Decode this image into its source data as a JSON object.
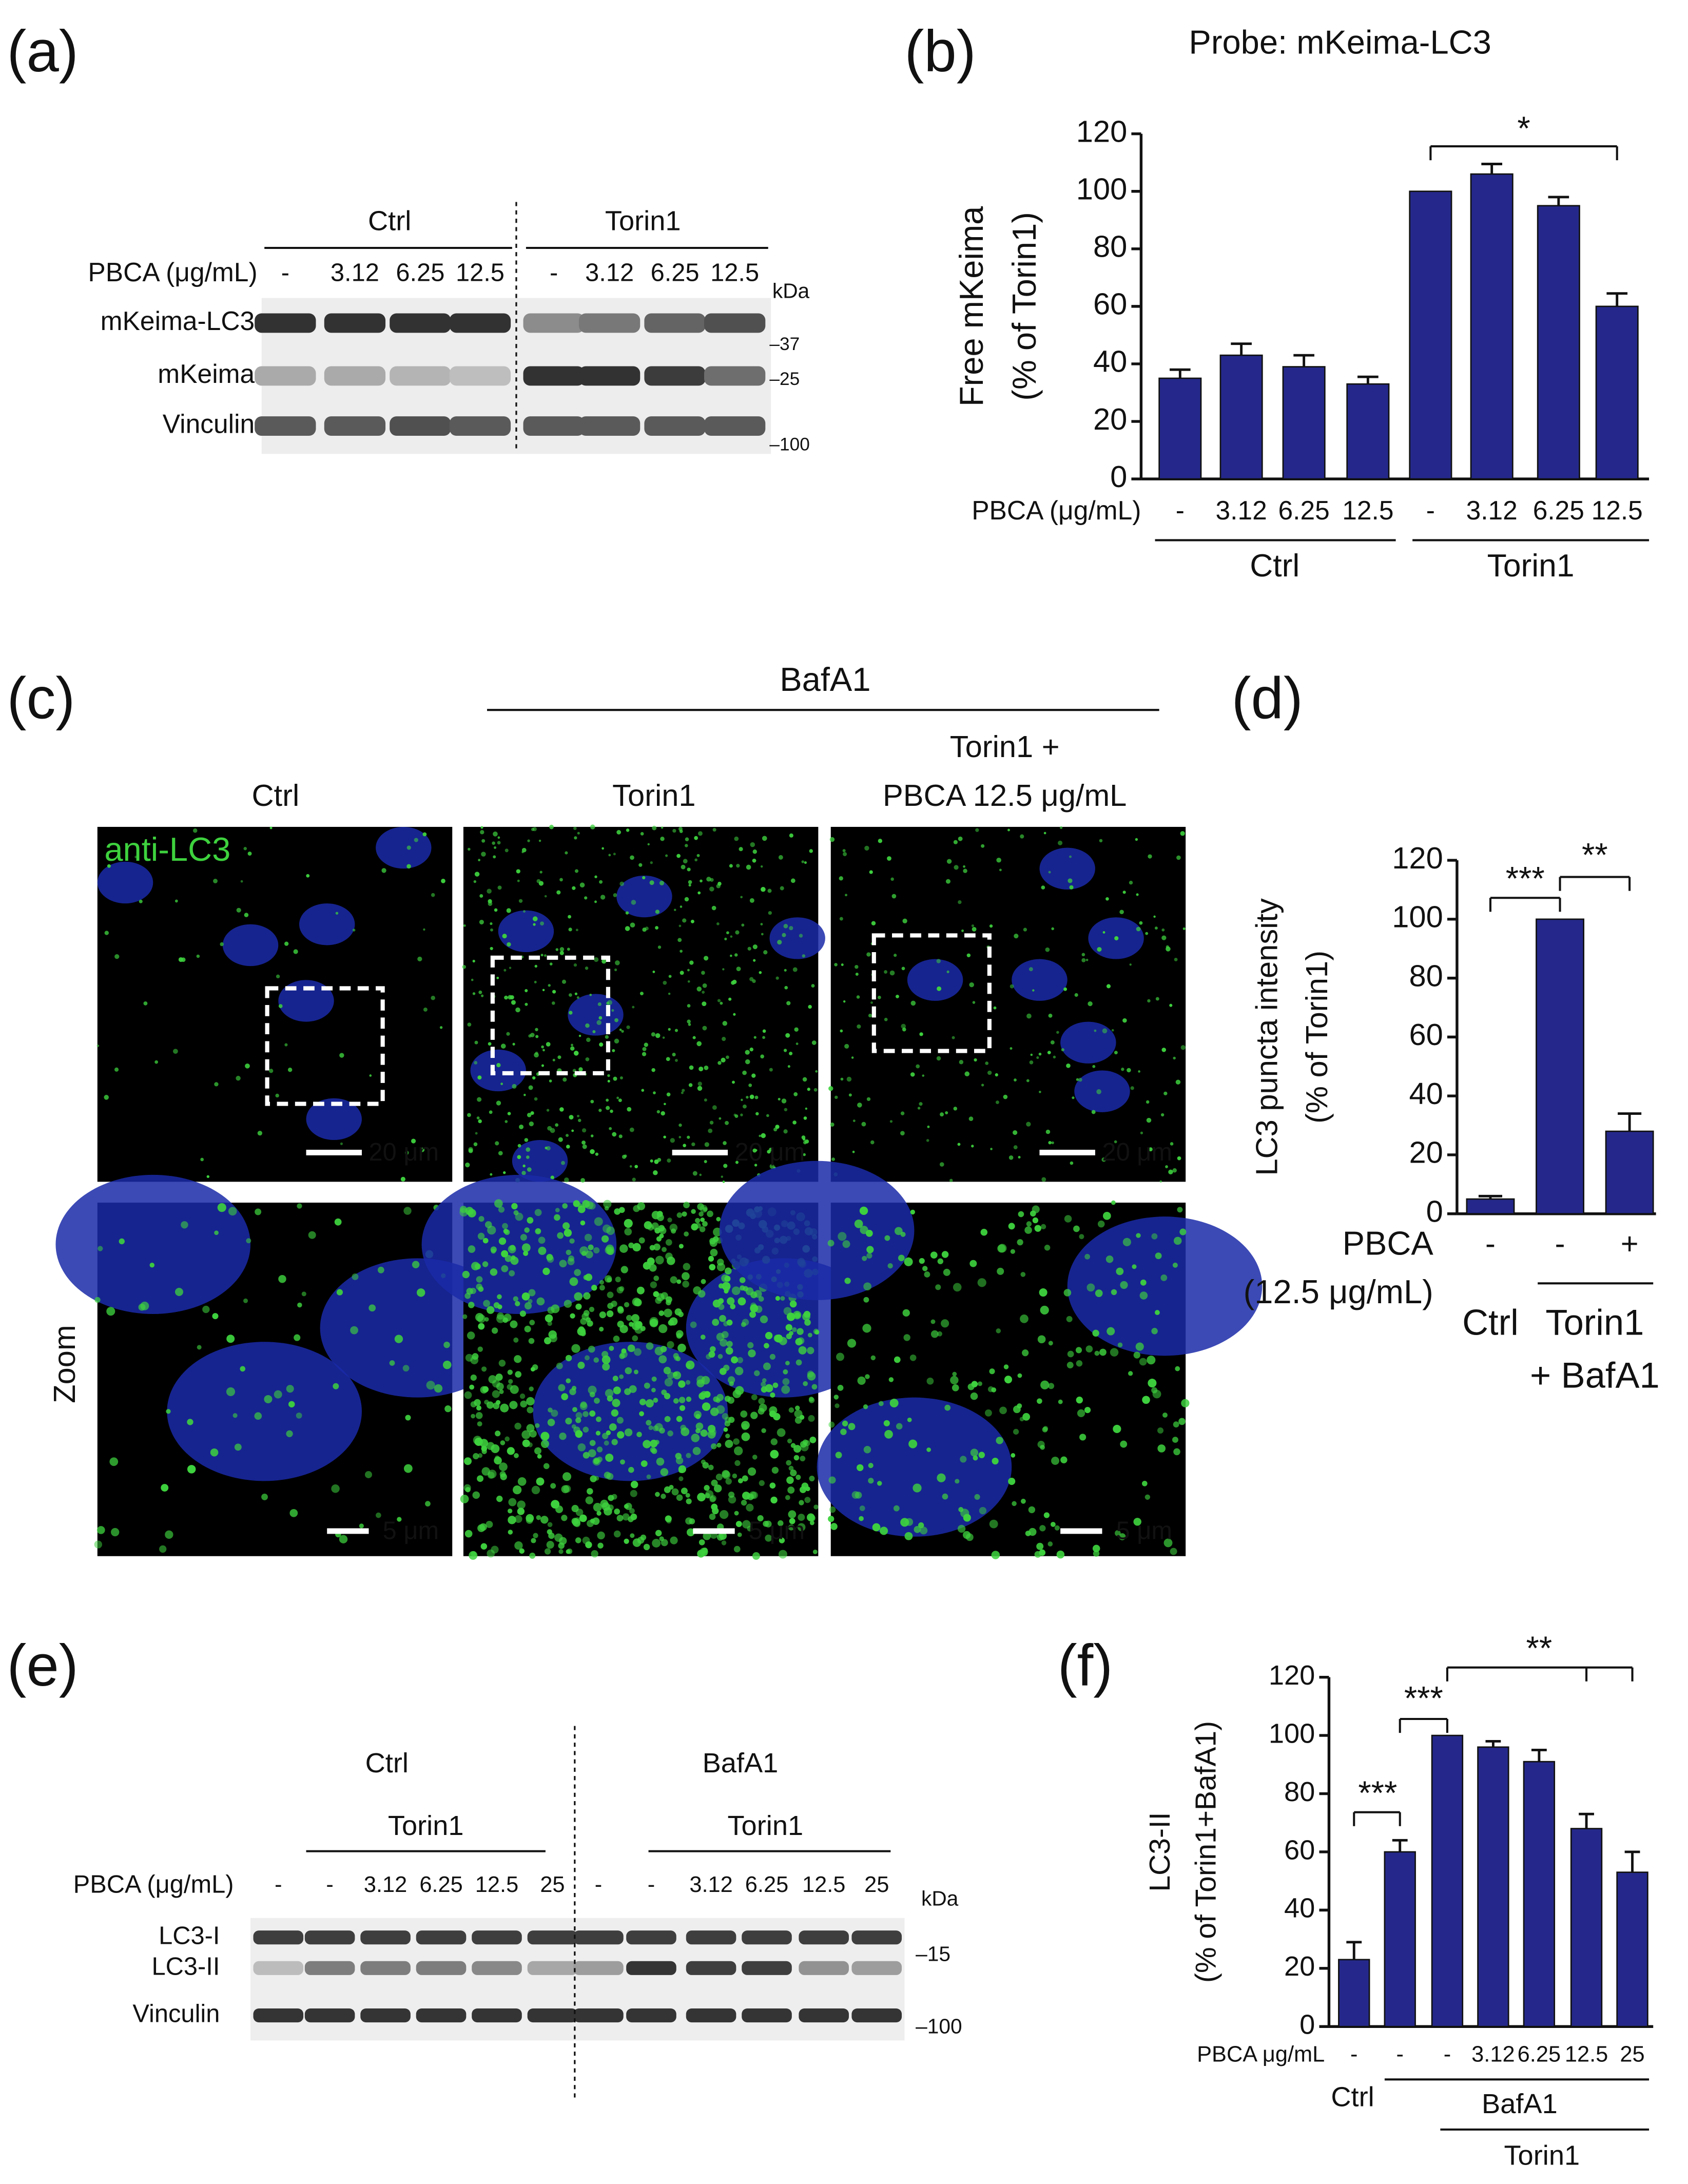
{
  "panel_labels": [
    "(a)",
    "(b)",
    "(c)",
    "(d)",
    "(e)",
    "(f)"
  ],
  "blot_a": {
    "groups": [
      "Ctrl",
      "Torin1"
    ],
    "treatment_label": "PBCA (μg/mL)",
    "doses": [
      "-",
      "3.12",
      "6.25",
      "12.5",
      "-",
      "3.12",
      "6.25",
      "12.5"
    ],
    "kda_label": "kDa",
    "rows": [
      "mKeima-LC3",
      "mKeima",
      "Vinculin"
    ],
    "markers": [
      "–37",
      "–25",
      "–100"
    ]
  },
  "microscopy": {
    "treatment_label": "BafA1",
    "columns": [
      [
        "Ctrl"
      ],
      [
        "Torin1"
      ],
      [
        "Torin1 +",
        "PBCA 12.5 μg/mL"
      ]
    ],
    "stain_label": "anti-LC3",
    "zoom_label": "Zoom",
    "scale_bars": [
      [
        "20 μm",
        "20 μm",
        "20 μm"
      ],
      [
        "5 μm",
        "5 μm",
        "5 μm"
      ]
    ]
  },
  "blot_e": {
    "groups": [
      "Ctrl",
      "BafA1"
    ],
    "subgroups": [
      "Torin1",
      "Torin1"
    ],
    "treatment_label": "PBCA (μg/mL)",
    "doses": [
      "-",
      "-",
      "3.12",
      "6.25",
      "12.5",
      "25",
      "-",
      "-",
      "3.12",
      "6.25",
      "12.5",
      "25"
    ],
    "kda_label": "kDa",
    "rows": [
      "LC3-I",
      "LC3-II",
      "Vinculin"
    ],
    "markers": [
      "–15",
      "–100"
    ]
  },
  "chart_data": [
    {
      "type": "bar",
      "title": "Probe: mKeima-LC3",
      "ylabel": [
        "Free mKeima",
        "(% of Torin1)"
      ],
      "xrow_label": [
        "PBCA (μg/mL)"
      ],
      "categories": [
        "-",
        "3.12",
        "6.25",
        "12.5",
        "-",
        "3.12",
        "6.25",
        "12.5"
      ],
      "groups": [
        [
          "Ctrl"
        ],
        [
          "Torin1"
        ]
      ],
      "values": [
        35,
        43,
        39,
        33,
        100,
        106,
        95,
        60
      ],
      "errors": [
        3,
        4,
        4,
        2.5,
        0,
        3.5,
        3,
        4.5
      ],
      "color": "#25288a",
      "ylim": [
        0,
        120
      ],
      "yticks": [
        0,
        20,
        40,
        60,
        80,
        100,
        120
      ],
      "significance": [
        "*"
      ]
    },
    {
      "type": "bar",
      "ylabel": [
        "LC3 puncta intensity",
        "(% of Torin1)"
      ],
      "xrow_label": [
        "PBCA",
        "(12.5 μg/mL)"
      ],
      "categories": [
        "-",
        "-",
        "+"
      ],
      "groups": [
        [
          "Ctrl"
        ],
        [
          "Torin1",
          "+ BafA1"
        ]
      ],
      "values": [
        5,
        100,
        28
      ],
      "errors": [
        1,
        0,
        6
      ],
      "color": "#25288a",
      "ylim": [
        0,
        120
      ],
      "yticks": [
        0,
        20,
        40,
        60,
        80,
        100,
        120
      ],
      "significance": [
        "***",
        "**"
      ]
    },
    {
      "type": "bar",
      "ylabel": [
        "LC3-II",
        "(% of Torin1+BafA1)"
      ],
      "xrow_label": [
        "PBCA μg/mL"
      ],
      "categories": [
        "-",
        "-",
        "-",
        "3.12",
        "6.25",
        "12.5",
        "25"
      ],
      "groups": [
        [
          "Ctrl"
        ],
        [
          "BafA1"
        ],
        [
          "Torin1"
        ]
      ],
      "values": [
        23,
        60,
        100,
        96,
        91,
        68,
        53
      ],
      "errors": [
        6,
        4,
        0,
        2,
        4,
        5,
        7
      ],
      "color": "#25288a",
      "ylim": [
        0,
        120
      ],
      "yticks": [
        0,
        20,
        40,
        60,
        80,
        100,
        120
      ],
      "significance": [
        "***",
        "***",
        "**"
      ]
    }
  ]
}
